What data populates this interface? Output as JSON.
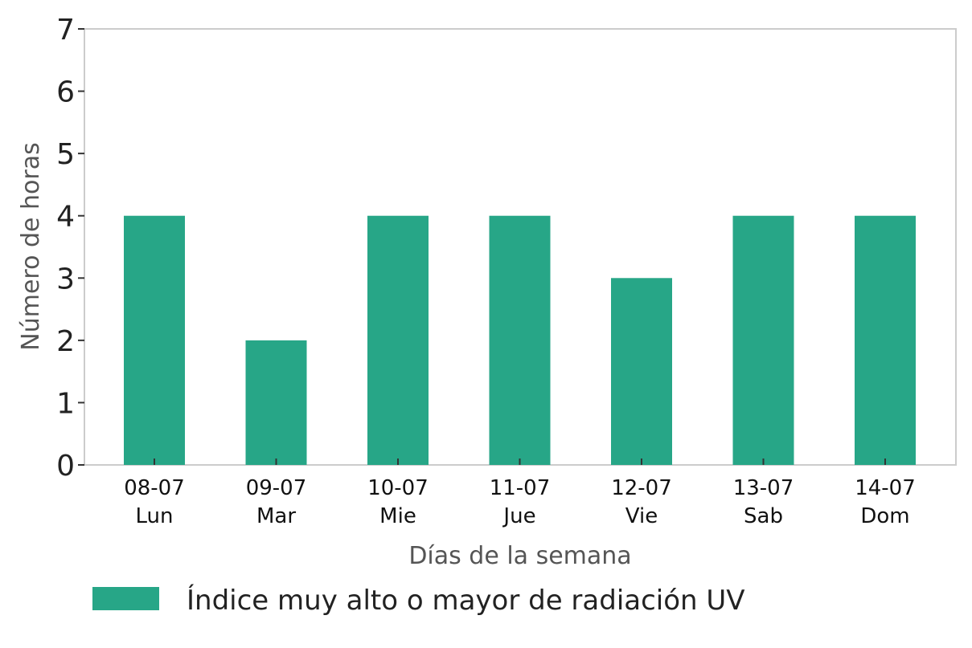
{
  "chart_data": {
    "type": "bar",
    "categories": [
      [
        "08-07",
        "Lun"
      ],
      [
        "09-07",
        "Mar"
      ],
      [
        "10-07",
        "Mie"
      ],
      [
        "11-07",
        "Jue"
      ],
      [
        "12-07",
        "Vie"
      ],
      [
        "13-07",
        "Sab"
      ],
      [
        "14-07",
        "Dom"
      ]
    ],
    "series": [
      {
        "name": "Índice muy alto o mayor de radiación UV",
        "values": [
          4,
          2,
          4,
          4,
          3,
          4,
          4
        ],
        "color": "#27a687"
      }
    ],
    "xlabel": "Días de la semana",
    "ylabel": "Número de horas",
    "ylim": [
      0,
      7
    ],
    "yticks": [
      0,
      1,
      2,
      3,
      4,
      5,
      6,
      7
    ],
    "grid": false,
    "legend_position": "bottom"
  }
}
